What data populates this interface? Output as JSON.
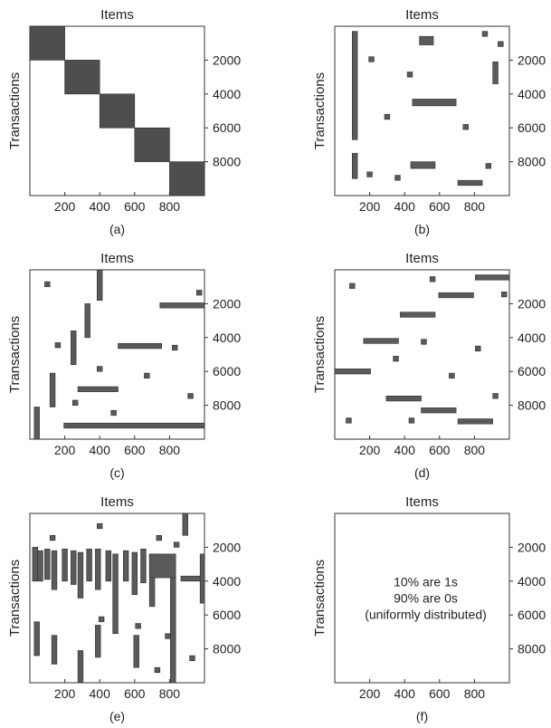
{
  "figure": {
    "axis_x_title": "Items",
    "axis_y_title": "Transactions",
    "x_ticks": [
      200,
      400,
      600,
      800
    ],
    "y_ticks": [
      2000,
      4000,
      6000,
      8000
    ],
    "colors": {
      "block": "#5a5a5a",
      "block_dense": "#4e4e4e",
      "axis": "#333333"
    }
  },
  "chart_data": [
    {
      "type": "heatmap",
      "caption": "(a)",
      "xlabel": "Items",
      "ylabel": "Transactions",
      "xlim": [
        0,
        1000
      ],
      "ylim": [
        0,
        10000
      ],
      "blocks": [
        {
          "x0": 0,
          "x1": 200,
          "y0": 0,
          "y1": 2000
        },
        {
          "x0": 200,
          "x1": 400,
          "y0": 2000,
          "y1": 4000
        },
        {
          "x0": 400,
          "x1": 600,
          "y0": 4000,
          "y1": 6000
        },
        {
          "x0": 600,
          "x1": 800,
          "y0": 6000,
          "y1": 8000
        },
        {
          "x0": 800,
          "x1": 1000,
          "y0": 8000,
          "y1": 10000
        }
      ]
    },
    {
      "type": "heatmap",
      "caption": "(b)",
      "xlabel": "Items",
      "ylabel": "Transactions",
      "xlim": [
        0,
        1000
      ],
      "ylim": [
        0,
        10000
      ],
      "blocks": [
        {
          "x0": 100,
          "x1": 130,
          "y0": 300,
          "y1": 6700
        },
        {
          "x0": 100,
          "x1": 130,
          "y0": 7500,
          "y1": 9000
        },
        {
          "x0": 485,
          "x1": 565,
          "y0": 600,
          "y1": 1100
        },
        {
          "x0": 845,
          "x1": 875,
          "y0": 300,
          "y1": 600
        },
        {
          "x0": 935,
          "x1": 965,
          "y0": 900,
          "y1": 1200
        },
        {
          "x0": 195,
          "x1": 225,
          "y0": 1800,
          "y1": 2100
        },
        {
          "x0": 905,
          "x1": 935,
          "y0": 2100,
          "y1": 3400
        },
        {
          "x0": 415,
          "x1": 445,
          "y0": 2700,
          "y1": 3000
        },
        {
          "x0": 445,
          "x1": 695,
          "y0": 4300,
          "y1": 4700
        },
        {
          "x0": 285,
          "x1": 315,
          "y0": 5200,
          "y1": 5500
        },
        {
          "x0": 735,
          "x1": 765,
          "y0": 5800,
          "y1": 6100
        },
        {
          "x0": 435,
          "x1": 575,
          "y0": 8000,
          "y1": 8400
        },
        {
          "x0": 865,
          "x1": 895,
          "y0": 8100,
          "y1": 8400
        },
        {
          "x0": 185,
          "x1": 215,
          "y0": 8600,
          "y1": 8900
        },
        {
          "x0": 345,
          "x1": 375,
          "y0": 8800,
          "y1": 9100
        },
        {
          "x0": 705,
          "x1": 845,
          "y0": 9100,
          "y1": 9400
        }
      ]
    },
    {
      "type": "heatmap",
      "caption": "(c)",
      "xlabel": "Items",
      "ylabel": "Transactions",
      "xlim": [
        0,
        1000
      ],
      "ylim": [
        0,
        10000
      ],
      "blocks": [
        {
          "x0": 385,
          "x1": 415,
          "y0": 0,
          "y1": 1800
        },
        {
          "x0": 85,
          "x1": 115,
          "y0": 700,
          "y1": 1000
        },
        {
          "x0": 955,
          "x1": 985,
          "y0": 1200,
          "y1": 1500
        },
        {
          "x0": 745,
          "x1": 1000,
          "y0": 1950,
          "y1": 2250
        },
        {
          "x0": 315,
          "x1": 345,
          "y0": 2000,
          "y1": 4000
        },
        {
          "x0": 235,
          "x1": 265,
          "y0": 3600,
          "y1": 5600
        },
        {
          "x0": 145,
          "x1": 175,
          "y0": 4300,
          "y1": 4600
        },
        {
          "x0": 505,
          "x1": 755,
          "y0": 4350,
          "y1": 4650
        },
        {
          "x0": 815,
          "x1": 845,
          "y0": 4450,
          "y1": 4750
        },
        {
          "x0": 385,
          "x1": 415,
          "y0": 5700,
          "y1": 6000
        },
        {
          "x0": 655,
          "x1": 685,
          "y0": 6100,
          "y1": 6400
        },
        {
          "x0": 115,
          "x1": 145,
          "y0": 6100,
          "y1": 8100
        },
        {
          "x0": 275,
          "x1": 505,
          "y0": 6900,
          "y1": 7200
        },
        {
          "x0": 905,
          "x1": 935,
          "y0": 7300,
          "y1": 7600
        },
        {
          "x0": 245,
          "x1": 275,
          "y0": 7700,
          "y1": 8000
        },
        {
          "x0": 465,
          "x1": 495,
          "y0": 8300,
          "y1": 8600
        },
        {
          "x0": 25,
          "x1": 55,
          "y0": 8100,
          "y1": 10000
        },
        {
          "x0": 195,
          "x1": 1000,
          "y0": 9050,
          "y1": 9350
        }
      ]
    },
    {
      "type": "heatmap",
      "caption": "(d)",
      "xlabel": "Items",
      "ylabel": "Transactions",
      "xlim": [
        0,
        1000
      ],
      "ylim": [
        0,
        10000
      ],
      "blocks": [
        {
          "x0": 805,
          "x1": 1000,
          "y0": 300,
          "y1": 600
        },
        {
          "x0": 545,
          "x1": 575,
          "y0": 400,
          "y1": 700
        },
        {
          "x0": 85,
          "x1": 115,
          "y0": 800,
          "y1": 1100
        },
        {
          "x0": 955,
          "x1": 985,
          "y0": 1300,
          "y1": 1600
        },
        {
          "x0": 595,
          "x1": 795,
          "y0": 1350,
          "y1": 1650
        },
        {
          "x0": 375,
          "x1": 575,
          "y0": 2500,
          "y1": 2800
        },
        {
          "x0": 165,
          "x1": 365,
          "y0": 4050,
          "y1": 4350
        },
        {
          "x0": 495,
          "x1": 525,
          "y0": 4100,
          "y1": 4400
        },
        {
          "x0": 805,
          "x1": 835,
          "y0": 4500,
          "y1": 4800
        },
        {
          "x0": 335,
          "x1": 365,
          "y0": 5100,
          "y1": 5400
        },
        {
          "x0": 0,
          "x1": 205,
          "y0": 5850,
          "y1": 6150
        },
        {
          "x0": 655,
          "x1": 685,
          "y0": 6100,
          "y1": 6400
        },
        {
          "x0": 905,
          "x1": 935,
          "y0": 7300,
          "y1": 7600
        },
        {
          "x0": 295,
          "x1": 495,
          "y0": 7450,
          "y1": 7750
        },
        {
          "x0": 495,
          "x1": 695,
          "y0": 8150,
          "y1": 8450
        },
        {
          "x0": 65,
          "x1": 95,
          "y0": 8750,
          "y1": 9050
        },
        {
          "x0": 425,
          "x1": 455,
          "y0": 8750,
          "y1": 9050
        },
        {
          "x0": 705,
          "x1": 905,
          "y0": 8800,
          "y1": 9100
        }
      ]
    },
    {
      "type": "heatmap",
      "caption": "(e)",
      "xlabel": "Items",
      "ylabel": "Transactions",
      "xlim": [
        0,
        1000
      ],
      "ylim": [
        0,
        10000
      ],
      "blocks": [
        {
          "x0": 875,
          "x1": 905,
          "y0": 0,
          "y1": 1300
        },
        {
          "x0": 385,
          "x1": 415,
          "y0": 600,
          "y1": 900
        },
        {
          "x0": 115,
          "x1": 145,
          "y0": 1300,
          "y1": 1600
        },
        {
          "x0": 725,
          "x1": 755,
          "y0": 1300,
          "y1": 1600
        },
        {
          "x0": 825,
          "x1": 855,
          "y0": 1700,
          "y1": 2000
        },
        {
          "x0": 15,
          "x1": 45,
          "y0": 2000,
          "y1": 4000
        },
        {
          "x0": 45,
          "x1": 75,
          "y0": 2200,
          "y1": 4000
        },
        {
          "x0": 85,
          "x1": 115,
          "y0": 2100,
          "y1": 3900
        },
        {
          "x0": 125,
          "x1": 155,
          "y0": 2200,
          "y1": 4500
        },
        {
          "x0": 185,
          "x1": 215,
          "y0": 2100,
          "y1": 4000
        },
        {
          "x0": 235,
          "x1": 265,
          "y0": 2200,
          "y1": 4200
        },
        {
          "x0": 275,
          "x1": 305,
          "y0": 2300,
          "y1": 5000
        },
        {
          "x0": 325,
          "x1": 355,
          "y0": 2100,
          "y1": 4000
        },
        {
          "x0": 375,
          "x1": 405,
          "y0": 2100,
          "y1": 4500
        },
        {
          "x0": 435,
          "x1": 465,
          "y0": 2200,
          "y1": 4000
        },
        {
          "x0": 475,
          "x1": 505,
          "y0": 2400,
          "y1": 7100
        },
        {
          "x0": 535,
          "x1": 565,
          "y0": 2200,
          "y1": 4000
        },
        {
          "x0": 585,
          "x1": 615,
          "y0": 2300,
          "y1": 4800
        },
        {
          "x0": 635,
          "x1": 665,
          "y0": 2100,
          "y1": 4100
        },
        {
          "x0": 685,
          "x1": 715,
          "y0": 2400,
          "y1": 5500
        },
        {
          "x0": 685,
          "x1": 835,
          "y0": 2400,
          "y1": 3800
        },
        {
          "x0": 805,
          "x1": 835,
          "y0": 3800,
          "y1": 10000
        },
        {
          "x0": 865,
          "x1": 1000,
          "y0": 3700,
          "y1": 4000
        },
        {
          "x0": 975,
          "x1": 1000,
          "y0": 2400,
          "y1": 5300
        },
        {
          "x0": 395,
          "x1": 425,
          "y0": 6100,
          "y1": 6400
        },
        {
          "x0": 605,
          "x1": 635,
          "y0": 6500,
          "y1": 6800
        },
        {
          "x0": 25,
          "x1": 55,
          "y0": 6400,
          "y1": 8400
        },
        {
          "x0": 375,
          "x1": 405,
          "y0": 6600,
          "y1": 8500
        },
        {
          "x0": 775,
          "x1": 805,
          "y0": 7100,
          "y1": 7400
        },
        {
          "x0": 125,
          "x1": 155,
          "y0": 7200,
          "y1": 8900
        },
        {
          "x0": 595,
          "x1": 625,
          "y0": 7200,
          "y1": 9100
        },
        {
          "x0": 915,
          "x1": 945,
          "y0": 8400,
          "y1": 8700
        },
        {
          "x0": 275,
          "x1": 305,
          "y0": 8100,
          "y1": 10000
        },
        {
          "x0": 715,
          "x1": 745,
          "y0": 9100,
          "y1": 9400
        }
      ]
    },
    {
      "type": "heatmap",
      "caption": "(f)",
      "xlabel": "Items",
      "ylabel": "Transactions",
      "xlim": [
        0,
        1000
      ],
      "ylim": [
        0,
        10000
      ],
      "annotation": [
        "10% are 1s",
        "90% are 0s",
        "(uniformly distributed)"
      ],
      "blocks": []
    }
  ]
}
